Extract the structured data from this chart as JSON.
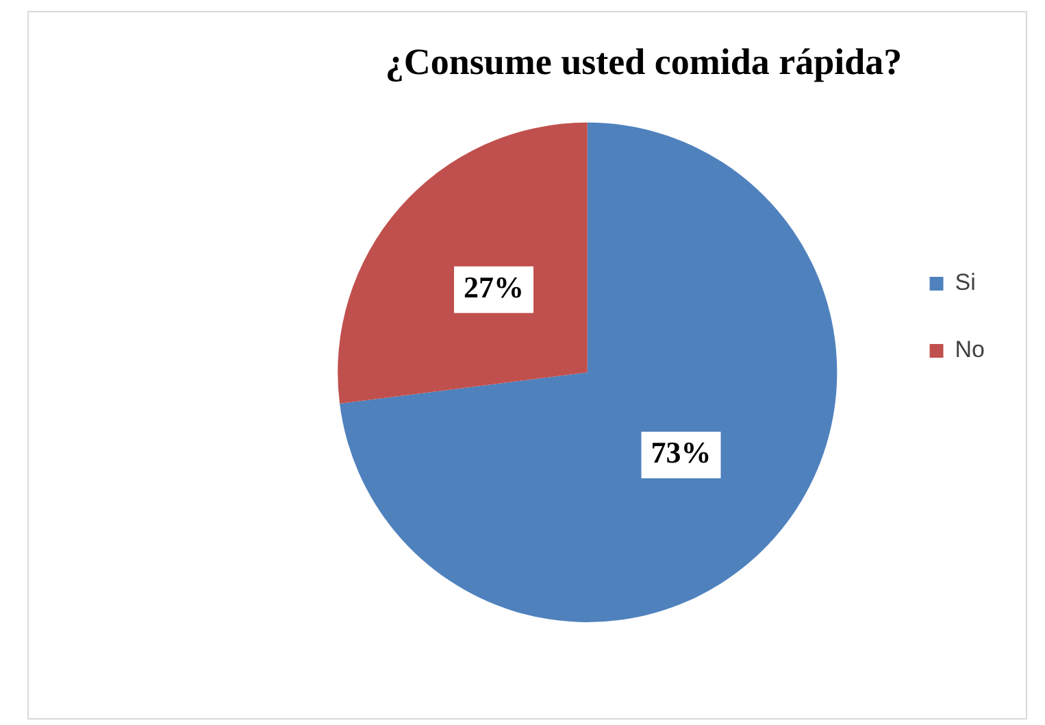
{
  "chart_data": {
    "type": "pie",
    "title": "¿Consume usted comida rápida?",
    "categories": [
      "Si",
      "No"
    ],
    "values": [
      73,
      27
    ],
    "colors": [
      "#4f81bd",
      "#c0504d"
    ],
    "value_labels": [
      "73%",
      "27%"
    ],
    "legend": "right"
  }
}
